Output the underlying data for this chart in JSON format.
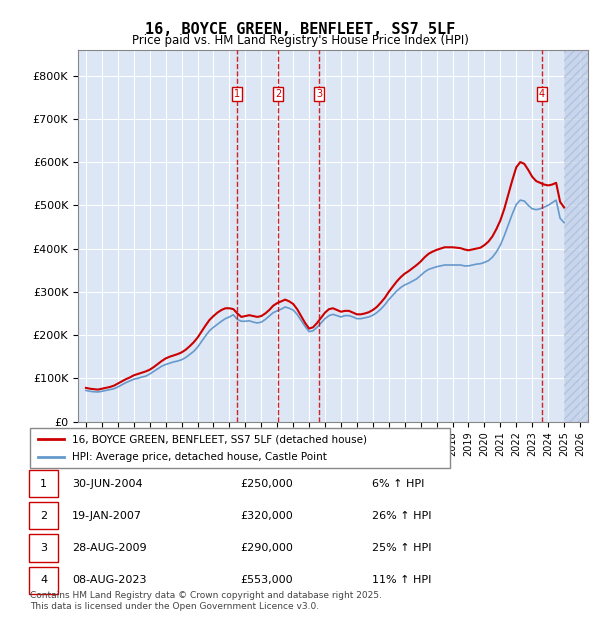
{
  "title": "16, BOYCE GREEN, BENFLEET, SS7 5LF",
  "subtitle": "Price paid vs. HM Land Registry's House Price Index (HPI)",
  "legend_line1": "16, BOYCE GREEN, BENFLEET, SS7 5LF (detached house)",
  "legend_line2": "HPI: Average price, detached house, Castle Point",
  "footer": "Contains HM Land Registry data © Crown copyright and database right 2025.\nThis data is licensed under the Open Government Licence v3.0.",
  "ylabel_ticks": [
    "£0",
    "£100K",
    "£200K",
    "£300K",
    "£400K",
    "£500K",
    "£600K",
    "£700K",
    "£800K"
  ],
  "ytick_values": [
    0,
    100000,
    200000,
    300000,
    400000,
    500000,
    600000,
    700000,
    800000
  ],
  "ylim": [
    0,
    860000
  ],
  "xlim_start": 1994.5,
  "xlim_end": 2026.5,
  "chart_bg": "#dce6f5",
  "hatch_color": "#c0cfe8",
  "grid_color": "#ffffff",
  "red_color": "#cc0000",
  "blue_color": "#6699cc",
  "transactions": [
    {
      "num": 1,
      "date": "30-JUN-2004",
      "price": "£250,000",
      "pct": "6% ↑ HPI",
      "year": 2004.5
    },
    {
      "num": 2,
      "date": "19-JAN-2007",
      "price": "£320,000",
      "pct": "26% ↑ HPI",
      "year": 2007.05
    },
    {
      "num": 3,
      "date": "28-AUG-2009",
      "price": "£290,000",
      "pct": "25% ↑ HPI",
      "year": 2009.65
    },
    {
      "num": 4,
      "date": "08-AUG-2023",
      "price": "£553,000",
      "pct": "11% ↑ HPI",
      "year": 2023.6
    }
  ],
  "hpi_data": {
    "years": [
      1995.0,
      1995.25,
      1995.5,
      1995.75,
      1996.0,
      1996.25,
      1996.5,
      1996.75,
      1997.0,
      1997.25,
      1997.5,
      1997.75,
      1998.0,
      1998.25,
      1998.5,
      1998.75,
      1999.0,
      1999.25,
      1999.5,
      1999.75,
      2000.0,
      2000.25,
      2000.5,
      2000.75,
      2001.0,
      2001.25,
      2001.5,
      2001.75,
      2002.0,
      2002.25,
      2002.5,
      2002.75,
      2003.0,
      2003.25,
      2003.5,
      2003.75,
      2004.0,
      2004.25,
      2004.5,
      2004.75,
      2005.0,
      2005.25,
      2005.5,
      2005.75,
      2006.0,
      2006.25,
      2006.5,
      2006.75,
      2007.0,
      2007.25,
      2007.5,
      2007.75,
      2008.0,
      2008.25,
      2008.5,
      2008.75,
      2009.0,
      2009.25,
      2009.5,
      2009.75,
      2010.0,
      2010.25,
      2010.5,
      2010.75,
      2011.0,
      2011.25,
      2011.5,
      2011.75,
      2012.0,
      2012.25,
      2012.5,
      2012.75,
      2013.0,
      2013.25,
      2013.5,
      2013.75,
      2014.0,
      2014.25,
      2014.5,
      2014.75,
      2015.0,
      2015.25,
      2015.5,
      2015.75,
      2016.0,
      2016.25,
      2016.5,
      2016.75,
      2017.0,
      2017.25,
      2017.5,
      2017.75,
      2018.0,
      2018.25,
      2018.5,
      2018.75,
      2019.0,
      2019.25,
      2019.5,
      2019.75,
      2020.0,
      2020.25,
      2020.5,
      2020.75,
      2021.0,
      2021.25,
      2021.5,
      2021.75,
      2022.0,
      2022.25,
      2022.5,
      2022.75,
      2023.0,
      2023.25,
      2023.5,
      2023.75,
      2024.0,
      2024.25,
      2024.5,
      2024.75,
      2025.0
    ],
    "values": [
      72000,
      70000,
      69000,
      68500,
      70000,
      72000,
      74000,
      76000,
      80000,
      85000,
      90000,
      94000,
      98000,
      100000,
      103000,
      105000,
      110000,
      116000,
      122000,
      128000,
      132000,
      135000,
      138000,
      140000,
      143000,
      148000,
      155000,
      162000,
      172000,
      185000,
      198000,
      210000,
      218000,
      225000,
      232000,
      238000,
      242000,
      247000,
      236000,
      232000,
      232000,
      233000,
      230000,
      228000,
      230000,
      236000,
      244000,
      252000,
      256000,
      260000,
      265000,
      262000,
      258000,
      248000,
      234000,
      220000,
      208000,
      210000,
      218000,
      228000,
      238000,
      245000,
      248000,
      245000,
      242000,
      245000,
      245000,
      242000,
      238000,
      238000,
      240000,
      242000,
      246000,
      252000,
      260000,
      270000,
      282000,
      292000,
      302000,
      310000,
      316000,
      320000,
      325000,
      330000,
      338000,
      346000,
      352000,
      355000,
      358000,
      360000,
      362000,
      362000,
      362000,
      362000,
      362000,
      360000,
      360000,
      362000,
      364000,
      365000,
      368000,
      372000,
      380000,
      392000,
      408000,
      430000,
      455000,
      480000,
      502000,
      512000,
      510000,
      500000,
      492000,
      490000,
      492000,
      496000,
      500000,
      506000,
      512000,
      470000,
      460000
    ]
  },
  "price_paid_data": {
    "years": [
      1995.0,
      1995.25,
      1995.5,
      1995.75,
      1996.0,
      1996.25,
      1996.5,
      1996.75,
      1997.0,
      1997.25,
      1997.5,
      1997.75,
      1998.0,
      1998.25,
      1998.5,
      1998.75,
      1999.0,
      1999.25,
      1999.5,
      1999.75,
      2000.0,
      2000.25,
      2000.5,
      2000.75,
      2001.0,
      2001.25,
      2001.5,
      2001.75,
      2002.0,
      2002.25,
      2002.5,
      2002.75,
      2003.0,
      2003.25,
      2003.5,
      2003.75,
      2004.0,
      2004.25,
      2004.5,
      2004.75,
      2005.0,
      2005.25,
      2005.5,
      2005.75,
      2006.0,
      2006.25,
      2006.5,
      2006.75,
      2007.0,
      2007.25,
      2007.5,
      2007.75,
      2008.0,
      2008.25,
      2008.5,
      2008.75,
      2009.0,
      2009.25,
      2009.5,
      2009.75,
      2010.0,
      2010.25,
      2010.5,
      2010.75,
      2011.0,
      2011.25,
      2011.5,
      2011.75,
      2012.0,
      2012.25,
      2012.5,
      2012.75,
      2013.0,
      2013.25,
      2013.5,
      2013.75,
      2014.0,
      2014.25,
      2014.5,
      2014.75,
      2015.0,
      2015.25,
      2015.5,
      2015.75,
      2016.0,
      2016.25,
      2016.5,
      2016.75,
      2017.0,
      2017.25,
      2017.5,
      2017.75,
      2018.0,
      2018.25,
      2018.5,
      2018.75,
      2019.0,
      2019.25,
      2019.5,
      2019.75,
      2020.0,
      2020.25,
      2020.5,
      2020.75,
      2021.0,
      2021.25,
      2021.5,
      2021.75,
      2022.0,
      2022.25,
      2022.5,
      2022.75,
      2023.0,
      2023.25,
      2023.5,
      2023.75,
      2024.0,
      2024.25,
      2024.5,
      2024.75,
      2025.0
    ],
    "values": [
      78000,
      76000,
      75000,
      74000,
      76000,
      78000,
      80000,
      83000,
      88000,
      93000,
      98000,
      102000,
      107000,
      110000,
      113000,
      116000,
      120000,
      126000,
      133000,
      140000,
      146000,
      150000,
      153000,
      156000,
      160000,
      166000,
      174000,
      183000,
      194000,
      208000,
      222000,
      235000,
      244000,
      252000,
      258000,
      262000,
      262000,
      260000,
      250000,
      242000,
      244000,
      246000,
      244000,
      242000,
      244000,
      250000,
      258000,
      268000,
      274000,
      278000,
      282000,
      278000,
      272000,
      260000,
      244000,
      228000,
      215000,
      218000,
      228000,
      240000,
      252000,
      260000,
      262000,
      258000,
      254000,
      256000,
      256000,
      252000,
      248000,
      248000,
      250000,
      253000,
      258000,
      265000,
      275000,
      286000,
      300000,
      312000,
      324000,
      334000,
      342000,
      348000,
      355000,
      362000,
      370000,
      380000,
      388000,
      393000,
      397000,
      400000,
      403000,
      403000,
      403000,
      402000,
      401000,
      398000,
      396000,
      398000,
      400000,
      402000,
      408000,
      416000,
      428000,
      445000,
      465000,
      492000,
      525000,
      558000,
      588000,
      600000,
      596000,
      582000,
      566000,
      556000,
      552000,
      548000,
      546000,
      548000,
      552000,
      508000,
      495000
    ]
  }
}
